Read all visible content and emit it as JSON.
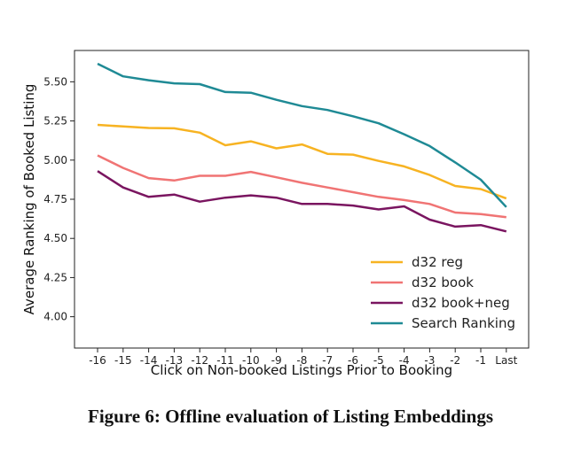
{
  "caption": "Figure 6: Offline evaluation of Listing Embeddings",
  "chart_data": {
    "type": "line",
    "categories": [
      "-16",
      "-15",
      "-14",
      "-13",
      "-12",
      "-11",
      "-10",
      "-9",
      "-8",
      "-7",
      "-6",
      "-5",
      "-4",
      "-3",
      "-2",
      "-1",
      "Last"
    ],
    "xlabel": "Click on Non-booked Listings Prior to Booking",
    "ylabel": "Average Ranking of Booked Listing",
    "ylim": [
      3.8,
      5.7
    ],
    "yticks": [
      "4.00",
      "4.25",
      "4.50",
      "4.75",
      "5.00",
      "5.25",
      "5.50"
    ],
    "ytick_values": [
      4.0,
      4.25,
      4.5,
      4.75,
      5.0,
      5.25,
      5.5
    ],
    "grid": false,
    "legend_position": "bottom-right",
    "series": [
      {
        "name": "d32 reg",
        "color": "#f7b322",
        "values": [
          5.225,
          5.215,
          5.205,
          5.203,
          5.175,
          5.095,
          5.12,
          5.075,
          5.1,
          5.04,
          5.035,
          4.995,
          4.96,
          4.905,
          4.835,
          4.815,
          4.755
        ]
      },
      {
        "name": "d32 book",
        "color": "#f07474",
        "values": [
          5.03,
          4.95,
          4.885,
          4.87,
          4.9,
          4.9,
          4.925,
          4.89,
          4.855,
          4.825,
          4.795,
          4.765,
          4.745,
          4.72,
          4.665,
          4.655,
          4.635
        ]
      },
      {
        "name": "d32 book+neg",
        "color": "#7a1560",
        "values": [
          4.93,
          4.825,
          4.765,
          4.78,
          4.735,
          4.76,
          4.775,
          4.76,
          4.72,
          4.72,
          4.71,
          4.685,
          4.705,
          4.62,
          4.575,
          4.585,
          4.545
        ]
      },
      {
        "name": "Search Ranking",
        "color": "#1f8a95",
        "values": [
          5.615,
          5.535,
          5.51,
          5.49,
          5.485,
          5.435,
          5.43,
          5.385,
          5.345,
          5.32,
          5.28,
          5.235,
          5.165,
          5.09,
          4.985,
          4.875,
          4.7
        ]
      }
    ]
  }
}
